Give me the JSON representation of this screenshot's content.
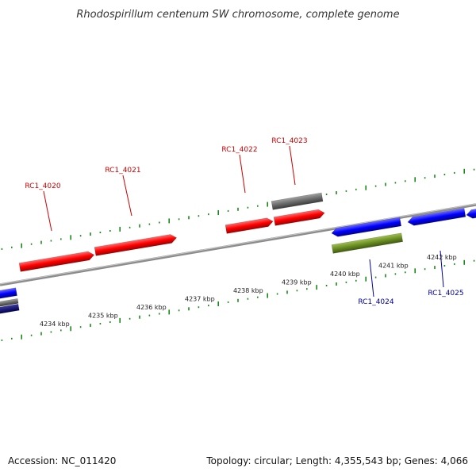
{
  "title": "Rhodospirillum centenum SW chromosome, complete genome",
  "footer": {
    "accession": "Accession: NC_011420",
    "summary": "Topology: circular; Length: 4,355,543 bp; Genes: 4,066"
  },
  "colors": {
    "forward_gene": "#ff0000",
    "reverse_gene": "#0000ff",
    "pseudo_gene": "#6b6b6b",
    "rna_gene": "#6b8e23",
    "forward_label": "#cc0000",
    "reverse_label": "#000099",
    "tick": "#1a8a1a",
    "backbone": "#8c8c8c"
  },
  "scale": {
    "tick_labels": [
      "4234 kbp",
      "4235 kbp",
      "4236 kbp",
      "4237 kbp",
      "4238 kbp",
      "4239 kbp",
      "4240 kbp",
      "4241 kbp",
      "4242 kbp"
    ]
  },
  "gene_labels": [
    {
      "text": "RC1_4020",
      "strand": "forward"
    },
    {
      "text": "RC1_4021",
      "strand": "forward"
    },
    {
      "text": "RC1_4022",
      "strand": "forward"
    },
    {
      "text": "RC1_4023",
      "strand": "forward"
    },
    {
      "text": "RC1_4024",
      "strand": "reverse"
    },
    {
      "text": "RC1_4025",
      "strand": "reverse"
    }
  ]
}
